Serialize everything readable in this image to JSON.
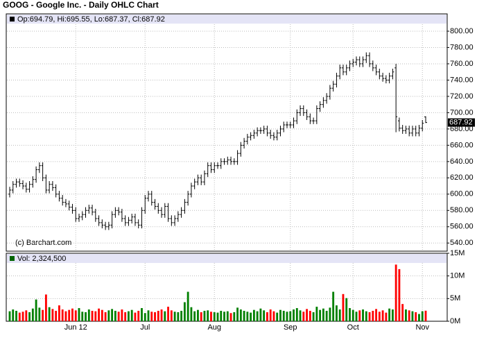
{
  "chart_data": {
    "type": "ohlc",
    "title": "GOOG - Google Inc. - Daily OHLC Chart",
    "legend_text": "Op:694.79, Hi:695.55, Lo:687.37, Cl:687.92",
    "source": "(c) Barchart.com",
    "categories": [
      null,
      null,
      null,
      null,
      null,
      null,
      null,
      null,
      null,
      null,
      null,
      null,
      null,
      null,
      null,
      null,
      null,
      null,
      null,
      null,
      "Jun 12",
      null,
      null,
      null,
      null,
      null,
      null,
      null,
      null,
      null,
      null,
      null,
      null,
      null,
      null,
      null,
      null,
      null,
      null,
      null,
      null,
      "Jul",
      null,
      null,
      null,
      null,
      null,
      null,
      null,
      null,
      null,
      null,
      null,
      null,
      null,
      null,
      null,
      null,
      null,
      null,
      null,
      null,
      "Aug",
      null,
      null,
      null,
      null,
      null,
      null,
      null,
      null,
      null,
      null,
      null,
      null,
      null,
      null,
      null,
      null,
      null,
      null,
      null,
      null,
      null,
      null,
      "Sep",
      null,
      null,
      null,
      null,
      null,
      null,
      null,
      null,
      null,
      null,
      null,
      null,
      null,
      null,
      null,
      null,
      null,
      null,
      "Oct",
      null,
      null,
      null,
      null,
      null,
      null,
      null,
      null,
      null,
      null,
      null,
      null,
      null,
      null,
      null,
      null,
      null,
      null,
      null,
      null,
      "Nov",
      null
    ],
    "open": [
      600,
      605,
      612,
      615,
      613,
      610,
      606,
      612,
      618,
      630,
      635,
      620,
      605,
      612,
      608,
      600,
      595,
      590,
      588,
      584,
      580,
      570,
      572,
      575,
      580,
      583,
      578,
      570,
      565,
      562,
      560,
      562,
      575,
      580,
      578,
      570,
      565,
      568,
      572,
      565,
      562,
      580,
      595,
      600,
      590,
      585,
      580,
      575,
      585,
      570,
      565,
      570,
      575,
      580,
      590,
      600,
      610,
      615,
      620,
      615,
      625,
      635,
      630,
      635,
      635,
      640,
      640,
      642,
      640,
      640,
      650,
      660,
      665,
      670,
      672,
      675,
      678,
      678,
      680,
      675,
      672,
      670,
      675,
      680,
      685,
      685,
      685,
      690,
      700,
      705,
      700,
      695,
      690,
      690,
      705,
      710,
      715,
      720,
      730,
      735,
      745,
      755,
      750,
      755,
      760,
      762,
      765,
      760,
      765,
      770,
      760,
      755,
      750,
      745,
      742,
      740,
      745,
      755,
      690,
      681,
      678,
      680,
      675,
      680,
      675,
      681,
      694.79
    ],
    "high": [
      609,
      616,
      619,
      619,
      617,
      614,
      616,
      622,
      634,
      639,
      639,
      624,
      616,
      616,
      612,
      604,
      599,
      594,
      592,
      588,
      584,
      576,
      579,
      584,
      587,
      587,
      582,
      574,
      569,
      566,
      566,
      579,
      584,
      584,
      582,
      574,
      572,
      576,
      576,
      569,
      584,
      599,
      604,
      604,
      594,
      589,
      584,
      589,
      589,
      574,
      574,
      579,
      584,
      594,
      604,
      614,
      619,
      624,
      624,
      629,
      639,
      639,
      639,
      639,
      644,
      644,
      646,
      646,
      644,
      654,
      664,
      669,
      674,
      676,
      679,
      682,
      682,
      684,
      684,
      679,
      676,
      679,
      684,
      689,
      689,
      689,
      694,
      704,
      709,
      709,
      704,
      699,
      694,
      709,
      714,
      719,
      724,
      734,
      739,
      749,
      759,
      759,
      759,
      764,
      766,
      769,
      769,
      769,
      774,
      774,
      764,
      759,
      754,
      749,
      746,
      749,
      754,
      760,
      694,
      685,
      684,
      684,
      684,
      684,
      685,
      691,
      695.55
    ],
    "low": [
      596,
      601,
      608,
      609,
      606,
      602,
      602,
      608,
      614,
      626,
      616,
      601,
      601,
      604,
      596,
      591,
      586,
      584,
      580,
      576,
      566,
      566,
      568,
      571,
      576,
      574,
      566,
      561,
      558,
      556,
      556,
      558,
      571,
      574,
      566,
      561,
      561,
      564,
      561,
      558,
      558,
      576,
      591,
      586,
      581,
      576,
      571,
      571,
      566,
      561,
      561,
      566,
      571,
      576,
      586,
      596,
      606,
      611,
      611,
      611,
      621,
      626,
      626,
      631,
      631,
      636,
      636,
      636,
      636,
      636,
      646,
      656,
      661,
      666,
      668,
      671,
      674,
      674,
      671,
      668,
      666,
      666,
      671,
      676,
      681,
      681,
      681,
      686,
      696,
      696,
      691,
      686,
      686,
      686,
      701,
      706,
      711,
      716,
      726,
      731,
      741,
      746,
      746,
      751,
      756,
      758,
      756,
      756,
      761,
      756,
      751,
      746,
      741,
      738,
      736,
      736,
      741,
      676,
      677,
      674,
      674,
      671,
      671,
      671,
      671,
      677,
      687.37
    ],
    "close": [
      605,
      612,
      615,
      613,
      610,
      606,
      612,
      618,
      630,
      635,
      620,
      605,
      612,
      608,
      600,
      595,
      590,
      588,
      584,
      580,
      570,
      572,
      575,
      580,
      583,
      578,
      570,
      565,
      562,
      560,
      562,
      575,
      580,
      578,
      570,
      565,
      568,
      572,
      565,
      562,
      580,
      595,
      600,
      590,
      585,
      580,
      575,
      585,
      570,
      565,
      570,
      575,
      580,
      590,
      600,
      610,
      615,
      620,
      615,
      625,
      635,
      630,
      635,
      635,
      640,
      640,
      642,
      640,
      640,
      650,
      660,
      665,
      670,
      672,
      675,
      678,
      678,
      680,
      675,
      672,
      670,
      675,
      680,
      685,
      685,
      685,
      690,
      700,
      705,
      700,
      695,
      690,
      690,
      705,
      710,
      715,
      720,
      730,
      735,
      745,
      755,
      750,
      755,
      760,
      762,
      765,
      760,
      765,
      770,
      760,
      755,
      750,
      745,
      742,
      740,
      745,
      750,
      695,
      681,
      678,
      680,
      675,
      680,
      675,
      681,
      687,
      687.92
    ],
    "bar_color": "#000000",
    "ylim": [
      530,
      808.5
    ],
    "yticks": [
      {
        "value": 540,
        "label": "540.00"
      },
      {
        "value": 560,
        "label": "560.00"
      },
      {
        "value": 580,
        "label": "580.00"
      },
      {
        "value": 600,
        "label": "600.00"
      },
      {
        "value": 620,
        "label": "620.00"
      },
      {
        "value": 640,
        "label": "640.00"
      },
      {
        "value": 660,
        "label": "660.00"
      },
      {
        "value": 680,
        "label": "680.00"
      },
      {
        "value": 700,
        "label": "700.00"
      },
      {
        "value": 720,
        "label": "720.00"
      },
      {
        "value": 740,
        "label": "740.00"
      },
      {
        "value": 760,
        "label": "760.00"
      },
      {
        "value": 780,
        "label": "780.00"
      },
      {
        "value": 800,
        "label": "800.00"
      }
    ],
    "grid": true,
    "volume": {
      "type": "bar",
      "legend_text": "Vol: 2,324,500",
      "values": [
        2200000,
        2600000,
        2300000,
        1900000,
        2100000,
        2400000,
        2000000,
        2800000,
        4800000,
        3000000,
        2500000,
        5900000,
        3100000,
        2700000,
        2300000,
        3500000,
        2600000,
        2200000,
        2500000,
        2800000,
        2400000,
        2900000,
        2100000,
        2000000,
        2600000,
        2300000,
        2200000,
        2800000,
        2500000,
        2000000,
        2400000,
        2700000,
        2300000,
        2100000,
        2600000,
        2000000,
        2200000,
        2500000,
        1900000,
        2300000,
        2900000,
        1800000,
        2400000,
        2100000,
        2000000,
        2300000,
        2600000,
        2200000,
        3200000,
        2400000,
        2100000,
        2000000,
        2300000,
        4200000,
        6500000,
        3100000,
        2200000,
        2500000,
        2000000,
        2300000,
        2400000,
        2100000,
        2000000,
        1900000,
        2300000,
        2100000,
        2200000,
        1800000,
        2000000,
        3000000,
        2600000,
        2300000,
        2100000,
        1900000,
        2500000,
        2200000,
        2800000,
        2400000,
        2000000,
        2600000,
        2200000,
        1900000,
        2500000,
        2300000,
        2100000,
        2200000,
        2600000,
        2900000,
        2400000,
        2100000,
        2700000,
        2300000,
        2000000,
        3200000,
        2500000,
        2800000,
        2300000,
        3000000,
        6500000,
        3500000,
        2600000,
        6000000,
        5100000,
        2900000,
        2500000,
        2100000,
        2400000,
        2600000,
        2200000,
        2000000,
        2300000,
        2700000,
        2100000,
        2400000,
        1900000,
        2800000,
        2600000,
        12500000,
        11500000,
        3800000,
        2600000,
        2400000,
        2200000,
        2000000,
        1600000,
        2200000,
        2324500
      ],
      "up_color": "#008000",
      "down_color": "#ff0000",
      "ylim": [
        0,
        15000000
      ],
      "yticks": [
        {
          "value": 0,
          "label": "0M"
        },
        {
          "value": 5000000,
          "label": "5M"
        },
        {
          "value": 10000000,
          "label": "10M"
        },
        {
          "value": 15000000,
          "label": "15M"
        }
      ]
    }
  }
}
